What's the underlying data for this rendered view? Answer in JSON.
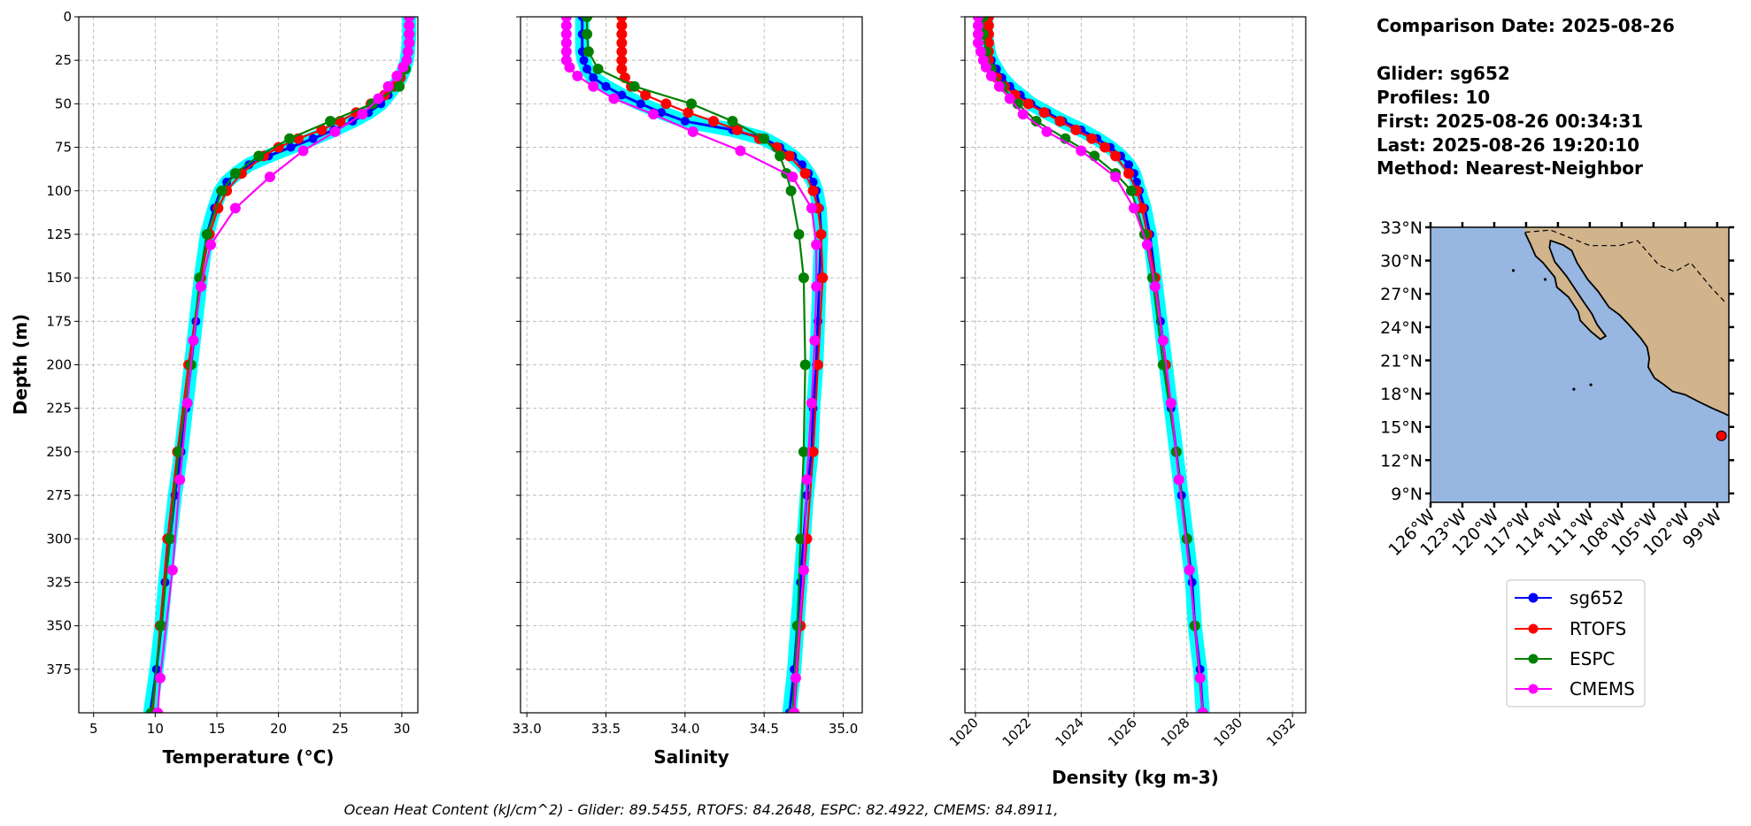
{
  "info": {
    "comparison_date": "Comparison Date: 2025-08-26",
    "glider": "Glider: sg652",
    "profiles": "Profiles: 10",
    "first": "First: 2025-08-26 00:34:31",
    "last": "Last: 2025-08-26 19:20:10",
    "method": "Method: Nearest-Neighbor"
  },
  "caption": "Ocean Heat Content (kJ/cm^2) - Glider: 89.5455,  RTOFS: 84.2648,  ESPC: 82.4922,  CMEMS: 84.8911,",
  "chart_data": {
    "type": "line",
    "ylabel": "Depth (m)",
    "ylim": [
      400,
      0
    ],
    "yticks": [
      0,
      25,
      50,
      75,
      100,
      125,
      150,
      175,
      200,
      225,
      250,
      275,
      300,
      325,
      350,
      375
    ],
    "grid": true,
    "panels": [
      {
        "key": "temperature",
        "xlabel": "Temperature (°C)",
        "xlim": [
          3.8,
          31.3
        ],
        "xticks": [
          5,
          10,
          15,
          20,
          25,
          30
        ],
        "tick_rotation": 0
      },
      {
        "key": "salinity",
        "xlabel": "Salinity",
        "xlim": [
          32.96,
          35.12
        ],
        "xticks": [
          33.0,
          33.5,
          34.0,
          34.5,
          35.0
        ],
        "tick_rotation": 0
      },
      {
        "key": "density",
        "xlabel": "Density (kg m-3)",
        "xlim": [
          1019.6,
          1032.5
        ],
        "xticks": [
          1020,
          1022,
          1024,
          1026,
          1028,
          1030,
          1032
        ],
        "tick_rotation": 45
      }
    ],
    "series": [
      {
        "name": "sg652",
        "color": "#0000ff",
        "spread_color": "#00ffff",
        "depth": [
          0,
          10,
          20,
          25,
          30,
          35,
          40,
          45,
          50,
          55,
          60,
          65,
          70,
          75,
          80,
          85,
          90,
          95,
          100,
          110,
          125,
          150,
          175,
          200,
          225,
          250,
          275,
          300,
          325,
          350,
          375,
          400
        ],
        "temperature": [
          30.6,
          30.6,
          30.5,
          30.4,
          30.2,
          29.9,
          29.4,
          28.9,
          28.3,
          27.3,
          26,
          24.5,
          22.8,
          21,
          19.2,
          17.6,
          16.6,
          15.8,
          15.3,
          14.8,
          14.2,
          13.7,
          13.3,
          12.9,
          12.5,
          12.1,
          11.6,
          11.2,
          10.8,
          10.5,
          10.1,
          9.6
        ],
        "salinity": [
          33.35,
          33.35,
          33.35,
          33.36,
          33.38,
          33.42,
          33.5,
          33.6,
          33.72,
          33.85,
          34.0,
          34.3,
          34.5,
          34.6,
          34.68,
          34.74,
          34.78,
          34.81,
          34.83,
          34.85,
          34.86,
          34.85,
          34.84,
          34.83,
          34.81,
          34.8,
          34.77,
          34.75,
          34.73,
          34.71,
          34.69,
          34.66
        ],
        "density": [
          1020.4,
          1020.4,
          1020.5,
          1020.6,
          1020.8,
          1021.0,
          1021.3,
          1021.7,
          1022.1,
          1022.7,
          1023.3,
          1024.0,
          1024.6,
          1025.1,
          1025.5,
          1025.8,
          1026.0,
          1026.1,
          1026.2,
          1026.4,
          1026.6,
          1026.8,
          1027.0,
          1027.2,
          1027.4,
          1027.6,
          1027.8,
          1028.0,
          1028.2,
          1028.3,
          1028.5,
          1028.6
        ]
      },
      {
        "name": "RTOFS",
        "color": "#ff0000",
        "depth": [
          0,
          5,
          10,
          15,
          20,
          25,
          30,
          35,
          40,
          45,
          50,
          55,
          60,
          65,
          70,
          75,
          80,
          90,
          100,
          110,
          125,
          150,
          200,
          250,
          300,
          350,
          400
        ],
        "temperature": [
          30.6,
          30.6,
          30.6,
          30.6,
          30.5,
          30.4,
          30.2,
          29.9,
          29.4,
          28.6,
          27.5,
          26.3,
          25,
          23.5,
          21.6,
          20,
          18.8,
          17,
          15.8,
          15.1,
          14.4,
          13.7,
          12.7,
          11.8,
          11.0,
          10.4,
          9.8
        ],
        "salinity": [
          33.6,
          33.6,
          33.6,
          33.6,
          33.6,
          33.6,
          33.6,
          33.62,
          33.66,
          33.75,
          33.88,
          34.02,
          34.18,
          34.33,
          34.47,
          34.58,
          34.66,
          34.76,
          34.81,
          34.84,
          34.86,
          34.87,
          34.84,
          34.81,
          34.77,
          34.73,
          34.69
        ],
        "density": [
          1020.5,
          1020.5,
          1020.5,
          1020.5,
          1020.5,
          1020.5,
          1020.6,
          1020.8,
          1021.1,
          1021.5,
          1022.0,
          1022.6,
          1023.2,
          1023.8,
          1024.4,
          1024.9,
          1025.3,
          1025.8,
          1026.1,
          1026.3,
          1026.5,
          1026.8,
          1027.2,
          1027.6,
          1028.0,
          1028.3,
          1028.6
        ]
      },
      {
        "name": "ESPC",
        "color": "#008000",
        "depth": [
          0,
          10,
          20,
          30,
          40,
          50,
          60,
          70,
          80,
          90,
          100,
          125,
          150,
          200,
          250,
          300,
          350,
          400
        ],
        "temperature": [
          30.6,
          30.6,
          30.5,
          30.3,
          29.8,
          27.6,
          24.2,
          20.9,
          18.4,
          16.5,
          15.4,
          14.2,
          13.6,
          12.9,
          11.9,
          11.2,
          10.5,
          9.7
        ],
        "salinity": [
          33.38,
          33.38,
          33.39,
          33.45,
          33.68,
          34.04,
          34.3,
          34.5,
          34.6,
          34.64,
          34.67,
          34.72,
          34.75,
          34.76,
          34.75,
          34.73,
          34.71,
          34.68
        ],
        "density": [
          1020.3,
          1020.3,
          1020.4,
          1020.6,
          1021.0,
          1021.6,
          1022.3,
          1023.4,
          1024.5,
          1025.3,
          1025.9,
          1026.4,
          1026.7,
          1027.1,
          1027.6,
          1028.0,
          1028.3,
          1028.6
        ]
      },
      {
        "name": "CMEMS",
        "color": "#ff00ff",
        "depth": [
          0,
          5,
          10,
          15,
          20,
          25,
          29,
          34,
          40,
          47,
          56,
          66,
          77,
          92,
          110,
          131,
          155,
          186,
          222,
          266,
          318,
          380,
          400
        ],
        "temperature": [
          30.6,
          30.6,
          30.6,
          30.6,
          30.5,
          30.4,
          30.1,
          29.6,
          28.9,
          28.1,
          26.8,
          24.6,
          22.0,
          19.3,
          16.5,
          14.5,
          13.7,
          13.1,
          12.6,
          12.0,
          11.4,
          10.4,
          10.2
        ],
        "salinity": [
          33.25,
          33.25,
          33.25,
          33.25,
          33.25,
          33.25,
          33.27,
          33.32,
          33.42,
          33.55,
          33.8,
          34.05,
          34.35,
          34.68,
          34.8,
          34.83,
          34.83,
          34.82,
          34.8,
          34.77,
          34.75,
          34.7,
          34.69
        ],
        "density": [
          1020.1,
          1020.1,
          1020.1,
          1020.1,
          1020.2,
          1020.3,
          1020.4,
          1020.6,
          1020.9,
          1021.3,
          1021.8,
          1022.7,
          1024.0,
          1025.3,
          1026.0,
          1026.5,
          1026.8,
          1027.1,
          1027.4,
          1027.7,
          1028.1,
          1028.5,
          1028.6
        ]
      }
    ],
    "map": {
      "lon_range": [
        -126,
        -97.9
      ],
      "lat_range": [
        8.2,
        33.0
      ],
      "lon_ticks": [
        -126,
        -123,
        -120,
        -117,
        -114,
        -111,
        -108,
        -105,
        -102,
        -99
      ],
      "lat_ticks": [
        33,
        30,
        27,
        24,
        21,
        18,
        15,
        12,
        9
      ],
      "ocean_color": "#97b6e1",
      "land_color": "#d1b48c",
      "glider_position": {
        "lon": -98.6,
        "lat": 14.2,
        "color": "#ff0000"
      },
      "legend": [
        "sg652",
        "RTOFS",
        "ESPC",
        "CMEMS"
      ]
    }
  }
}
